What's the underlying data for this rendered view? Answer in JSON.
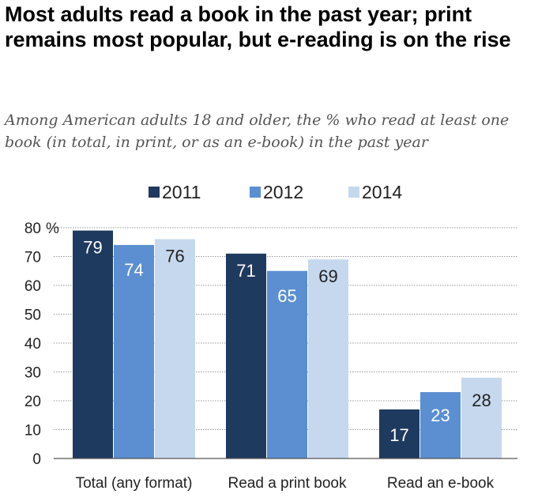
{
  "title": "Most adults read a book in the past year; print remains most popular, but e-reading is on the rise",
  "subtitle": "Among American adults 18 and older, the % who read at least one book (in total, in print, or as an e-book) in the past year",
  "chart_data": {
    "type": "bar",
    "categories": [
      "Total (any format)",
      "Read a print book",
      "Read an e-book"
    ],
    "series": [
      {
        "name": "2011",
        "values": [
          79,
          71,
          17
        ],
        "color": "#1f3a5f"
      },
      {
        "name": "2012",
        "values": [
          74,
          65,
          23
        ],
        "color": "#5b8fd1"
      },
      {
        "name": "2014",
        "values": [
          76,
          69,
          28
        ],
        "color": "#c6d8ee"
      }
    ],
    "ylim": [
      0,
      80
    ],
    "yticks": [
      0,
      10,
      20,
      30,
      40,
      50,
      60,
      70,
      80
    ],
    "yunit": "%",
    "legend_position": "top",
    "grid": true
  }
}
